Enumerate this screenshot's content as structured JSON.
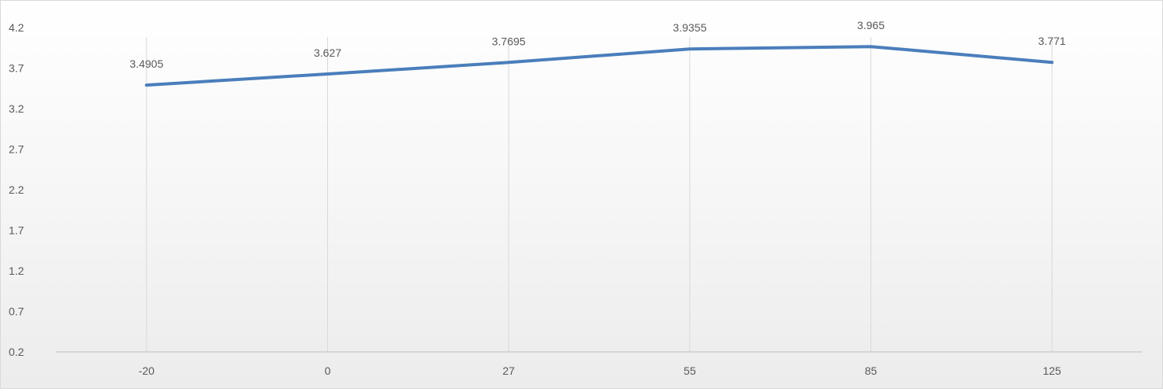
{
  "chart_data": {
    "type": "line",
    "title": "",
    "xlabel": "",
    "ylabel": "",
    "categories": [
      "-20",
      "0",
      "27",
      "55",
      "85",
      "125"
    ],
    "series": [
      {
        "values": [
          3.4905,
          3.627,
          3.7695,
          3.9355,
          3.965,
          3.771
        ],
        "color": "#4a7ebb"
      }
    ],
    "data_labels": [
      "3.4905",
      "3.627",
      "3.7695",
      "3.9355",
      "3.965",
      "3.771"
    ],
    "y_ticks": [
      "4.2",
      "3.7",
      "3.2",
      "2.7",
      "2.2",
      "1.7",
      "1.2",
      "0.7",
      "0.2"
    ],
    "ylim": [
      0.2,
      4.2
    ],
    "grid": "vertical",
    "legend": "none"
  }
}
